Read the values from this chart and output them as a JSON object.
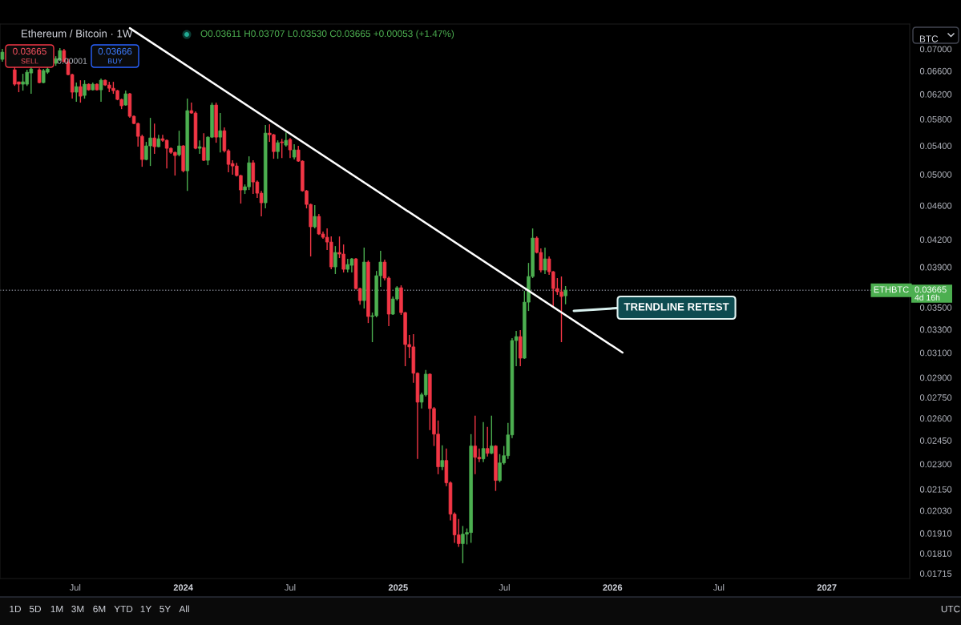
{
  "chart_data": {
    "type": "candlestick",
    "title": "Ethereum / Bitcoin · 1W",
    "subtitle": "O0.03611 H0.03707 L0.03530 C0.03665 +0.00053 (+1.47%)",
    "ylabel": "BTC",
    "log": true,
    "grid": false,
    "xlim": [
      "2023-02-23",
      "2027-05-22"
    ],
    "ylim": [
      0.01692,
      0.07484
    ],
    "xticks": [
      {
        "value": "2023-07-01",
        "label": "Jul"
      },
      {
        "value": "2024-01-01",
        "label": "2024"
      },
      {
        "value": "2024-07-01",
        "label": "Jul"
      },
      {
        "value": "2025-01-01",
        "label": "2025"
      },
      {
        "value": "2025-07-01",
        "label": "Jul"
      },
      {
        "value": "2026-01-01",
        "label": "2026"
      },
      {
        "value": "2026-07-01",
        "label": "Jul"
      },
      {
        "value": "2027-01-01",
        "label": "2027"
      }
    ],
    "yticks": [
      {
        "value": 0.07,
        "label": "0.07000"
      },
      {
        "value": 0.066,
        "label": "0.06600"
      },
      {
        "value": 0.062,
        "label": "0.06200"
      },
      {
        "value": 0.058,
        "label": "0.05800"
      },
      {
        "value": 0.054,
        "label": "0.05400"
      },
      {
        "value": 0.05,
        "label": "0.05000"
      },
      {
        "value": 0.046,
        "label": "0.04600"
      },
      {
        "value": 0.042,
        "label": "0.04200"
      },
      {
        "value": 0.039,
        "label": "0.03900"
      },
      {
        "value": 0.035,
        "label": "0.03500"
      },
      {
        "value": 0.033,
        "label": "0.03300"
      },
      {
        "value": 0.031,
        "label": "0.03100"
      },
      {
        "value": 0.029,
        "label": "0.02900"
      },
      {
        "value": 0.0275,
        "label": "0.02750"
      },
      {
        "value": 0.026,
        "label": "0.02600"
      },
      {
        "value": 0.0245,
        "label": "0.02450"
      },
      {
        "value": 0.023,
        "label": "0.02300"
      },
      {
        "value": 0.0215,
        "label": "0.02150"
      },
      {
        "value": 0.0203,
        "label": "0.02030"
      },
      {
        "value": 0.0191,
        "label": "0.01910"
      },
      {
        "value": 0.0181,
        "label": "0.01810"
      },
      {
        "value": 0.01715,
        "label": "0.01715"
      }
    ],
    "series": [
      {
        "x": [
          "2023-02-27",
          "2023-03-20",
          "2023-03-27",
          "2023-04-03",
          "2023-04-10",
          "2023-04-17",
          "2023-05-01",
          "2023-05-08",
          "2023-05-15",
          "2023-05-29",
          "2023-06-05",
          "2023-06-12",
          "2023-06-19",
          "2023-06-26",
          "2023-07-03",
          "2023-07-10",
          "2023-07-17",
          "2023-07-24",
          "2023-07-31",
          "2023-08-07",
          "2023-08-14",
          "2023-08-21",
          "2023-08-28",
          "2023-09-04",
          "2023-09-11",
          "2023-09-18",
          "2023-09-25",
          "2023-10-02",
          "2023-10-09",
          "2023-10-16",
          "2023-10-23",
          "2023-10-30",
          "2023-11-06",
          "2023-11-13",
          "2023-11-20",
          "2023-11-27",
          "2023-12-04",
          "2023-12-11",
          "2023-12-18",
          "2023-12-25",
          "2024-01-01",
          "2024-01-08",
          "2024-01-15",
          "2024-01-22",
          "2024-01-29",
          "2024-02-05",
          "2024-02-12",
          "2024-02-19",
          "2024-02-26",
          "2024-03-04",
          "2024-03-11",
          "2024-03-18",
          "2024-03-25",
          "2024-04-01",
          "2024-04-08",
          "2024-04-15",
          "2024-04-22",
          "2024-04-29",
          "2024-05-06",
          "2024-05-13",
          "2024-05-20",
          "2024-05-27",
          "2024-06-03",
          "2024-06-10",
          "2024-06-17",
          "2024-06-24",
          "2024-07-01",
          "2024-07-08",
          "2024-07-15",
          "2024-07-22",
          "2024-07-29",
          "2024-08-05",
          "2024-08-12",
          "2024-08-19",
          "2024-08-26",
          "2024-09-02",
          "2024-09-09",
          "2024-09-16",
          "2024-09-23",
          "2024-09-30",
          "2024-10-07",
          "2024-10-14",
          "2024-10-21",
          "2024-10-28",
          "2024-11-04",
          "2024-11-11",
          "2024-11-18",
          "2024-11-25",
          "2024-12-02",
          "2024-12-09",
          "2024-12-16",
          "2024-12-23",
          "2024-12-30",
          "2025-01-06",
          "2025-01-13",
          "2025-01-20",
          "2025-01-27",
          "2025-02-03",
          "2025-02-10",
          "2025-02-17",
          "2025-02-24",
          "2025-03-03",
          "2025-03-10",
          "2025-03-17",
          "2025-03-24",
          "2025-03-31",
          "2025-04-07",
          "2025-04-14",
          "2025-04-21",
          "2025-04-28",
          "2025-05-05",
          "2025-05-12",
          "2025-05-19",
          "2025-05-26",
          "2025-06-02",
          "2025-06-09",
          "2025-06-16",
          "2025-06-23",
          "2025-06-30",
          "2025-07-07",
          "2025-07-14",
          "2025-07-21",
          "2025-07-28",
          "2025-08-04",
          "2025-08-11",
          "2025-08-18",
          "2025-08-25",
          "2025-09-01",
          "2025-09-08",
          "2025-09-15",
          "2025-09-22",
          "2025-09-29",
          "2025-10-06",
          "2025-10-13"
        ],
        "ohlc": [
          [
            0.06808,
            0.07,
            0.06764,
            0.0694
          ],
          [
            0.0662,
            0.06677,
            0.06341,
            0.06369
          ],
          [
            0.0641,
            0.0641,
            0.06234,
            0.06369
          ],
          [
            0.06369,
            0.06549,
            0.0626,
            0.0641
          ],
          [
            0.06369,
            0.0662,
            0.06341,
            0.06577
          ],
          [
            0.06563,
            0.06677,
            0.06207,
            0.06634
          ],
          [
            0.0662,
            0.06648,
            0.06383,
            0.06396
          ],
          [
            0.06396,
            0.06634,
            0.06383,
            0.06606
          ],
          [
            0.06577,
            0.06677,
            0.06549,
            0.06634
          ],
          [
            0.06735,
            0.06866,
            0.06691,
            0.06822
          ],
          [
            0.06793,
            0.07015,
            0.06778,
            0.0697
          ],
          [
            0.0697,
            0.07,
            0.06749,
            0.06764
          ],
          [
            0.06764,
            0.06822,
            0.06521,
            0.06535
          ],
          [
            0.06535,
            0.06549,
            0.06127,
            0.06234
          ],
          [
            0.06234,
            0.06396,
            0.06075,
            0.06328
          ],
          [
            0.06328,
            0.06437,
            0.06062,
            0.06167
          ],
          [
            0.0618,
            0.06437,
            0.06127,
            0.06369
          ],
          [
            0.06369,
            0.06383,
            0.0626,
            0.06273
          ],
          [
            0.06273,
            0.06396,
            0.0626,
            0.06369
          ],
          [
            0.06369,
            0.06383,
            0.0626,
            0.06273
          ],
          [
            0.06273,
            0.06465,
            0.06075,
            0.06437
          ],
          [
            0.06437,
            0.06451,
            0.06341,
            0.06355
          ],
          [
            0.06355,
            0.0641,
            0.06234,
            0.063
          ],
          [
            0.063,
            0.0641,
            0.06207,
            0.0626
          ],
          [
            0.0626,
            0.06273,
            0.06101,
            0.06114
          ],
          [
            0.06114,
            0.06127,
            0.05958,
            0.0601
          ],
          [
            0.06023,
            0.0626,
            0.0601,
            0.06207
          ],
          [
            0.06207,
            0.06221,
            0.05819,
            0.05844
          ],
          [
            0.05844,
            0.05857,
            0.0572,
            0.05732
          ],
          [
            0.05732,
            0.05745,
            0.05386,
            0.05538
          ],
          [
            0.05538,
            0.05562,
            0.05104,
            0.05204
          ],
          [
            0.05204,
            0.05456,
            0.05193,
            0.05398
          ],
          [
            0.05398,
            0.05819,
            0.05115,
            0.05514
          ],
          [
            0.05514,
            0.05732,
            0.05283,
            0.05386
          ],
          [
            0.05386,
            0.05562,
            0.05375,
            0.05502
          ],
          [
            0.05502,
            0.05562,
            0.05456,
            0.05479
          ],
          [
            0.05479,
            0.05491,
            0.05082,
            0.05363
          ],
          [
            0.05363,
            0.05375,
            0.05283,
            0.05305
          ],
          [
            0.05305,
            0.05316,
            0.04985,
            0.0526
          ],
          [
            0.05271,
            0.05622,
            0.05249,
            0.05398
          ],
          [
            0.05398,
            0.05409,
            0.05028,
            0.05049
          ],
          [
            0.05049,
            0.06127,
            0.04785,
            0.05933
          ],
          [
            0.05933,
            0.06062,
            0.05883,
            0.05895
          ],
          [
            0.05895,
            0.05921,
            0.05351,
            0.05363
          ],
          [
            0.05363,
            0.05479,
            0.05283,
            0.05386
          ],
          [
            0.05375,
            0.05586,
            0.05182,
            0.05193
          ],
          [
            0.05193,
            0.05538,
            0.05126,
            0.05526
          ],
          [
            0.05526,
            0.06062,
            0.05514,
            0.06023
          ],
          [
            0.06023,
            0.06062,
            0.05444,
            0.05526
          ],
          [
            0.05526,
            0.05895,
            0.05305,
            0.05622
          ],
          [
            0.05622,
            0.05671,
            0.05305,
            0.05328
          ],
          [
            0.05328,
            0.05351,
            0.05028,
            0.05137
          ],
          [
            0.05148,
            0.05193,
            0.04996,
            0.05115
          ],
          [
            0.05115,
            0.05159,
            0.04974,
            0.04985
          ],
          [
            0.04985,
            0.04996,
            0.04624,
            0.04796
          ],
          [
            0.04796,
            0.04868,
            0.04745,
            0.04837
          ],
          [
            0.04837,
            0.05249,
            0.04796,
            0.05159
          ],
          [
            0.05159,
            0.05193,
            0.04745,
            0.049
          ],
          [
            0.049,
            0.04921,
            0.04694,
            0.04755
          ],
          [
            0.04755,
            0.04785,
            0.04468,
            0.04634
          ],
          [
            0.04634,
            0.05708,
            0.04565,
            0.05586
          ],
          [
            0.05586,
            0.0572,
            0.05456,
            0.05562
          ],
          [
            0.05562,
            0.05574,
            0.05215,
            0.05316
          ],
          [
            0.05316,
            0.05479,
            0.05215,
            0.05444
          ],
          [
            0.05456,
            0.05502,
            0.05226,
            0.05444
          ],
          [
            0.05409,
            0.05598,
            0.05386,
            0.05479
          ],
          [
            0.05491,
            0.05514,
            0.05226,
            0.0534
          ],
          [
            0.05238,
            0.05421,
            0.05204,
            0.0534
          ],
          [
            0.0534,
            0.05398,
            0.05171,
            0.05182
          ],
          [
            0.05182,
            0.05193,
            0.04775,
            0.04785
          ],
          [
            0.04785,
            0.04796,
            0.04565,
            0.04614
          ],
          [
            0.04614,
            0.04624,
            0.04013,
            0.04345
          ],
          [
            0.04345,
            0.04604,
            0.04326,
            0.04468
          ],
          [
            0.04468,
            0.04497,
            0.04252,
            0.04262
          ],
          [
            0.04262,
            0.04289,
            0.04207,
            0.04225
          ],
          [
            0.04225,
            0.04326,
            0.04082,
            0.04171
          ],
          [
            0.04171,
            0.04234,
            0.03877,
            0.03902
          ],
          [
            0.03902,
            0.04126,
            0.03828,
            0.04056
          ],
          [
            0.04056,
            0.04234,
            0.03996,
            0.04039
          ],
          [
            0.04039,
            0.04144,
            0.03844,
            0.03877
          ],
          [
            0.03877,
            0.03987,
            0.03844,
            0.03927
          ],
          [
            0.03919,
            0.03996,
            0.03844,
            0.03987
          ],
          [
            0.03987,
            0.03996,
            0.03674,
            0.03682
          ],
          [
            0.03682,
            0.0369,
            0.03527,
            0.03565
          ],
          [
            0.03565,
            0.04109,
            0.0349,
            0.03953
          ],
          [
            0.03953,
            0.0397,
            0.03357,
            0.03416
          ],
          [
            0.03416,
            0.03452,
            0.03189,
            0.03423
          ],
          [
            0.03423,
            0.0386,
            0.03409,
            0.03811
          ],
          [
            0.03811,
            0.04074,
            0.03698,
            0.03953
          ],
          [
            0.03953,
            0.03979,
            0.03762,
            0.03787
          ],
          [
            0.03787,
            0.03803,
            0.03329,
            0.03438
          ],
          [
            0.03438,
            0.03604,
            0.03431,
            0.03581
          ],
          [
            0.03581,
            0.03706,
            0.03565,
            0.0369
          ],
          [
            0.0369,
            0.03714,
            0.03431,
            0.03452
          ],
          [
            0.03452,
            0.03459,
            0.0299,
            0.03169
          ],
          [
            0.03169,
            0.03251,
            0.03055,
            0.03149
          ],
          [
            0.03149,
            0.03258,
            0.02859,
            0.02934
          ],
          [
            0.02934,
            0.0294,
            0.02332,
            0.02715
          ],
          [
            0.02715,
            0.02786,
            0.02669,
            0.02769
          ],
          [
            0.02769,
            0.02959,
            0.02757,
            0.02927
          ],
          [
            0.02927,
            0.02933,
            0.02519,
            0.02669
          ],
          [
            0.02669,
            0.0268,
            0.02414,
            0.02492
          ],
          [
            0.02492,
            0.02585,
            0.02238,
            0.02283
          ],
          [
            0.02283,
            0.02419,
            0.02263,
            0.02322
          ],
          [
            0.02322,
            0.02398,
            0.02168,
            0.02187
          ],
          [
            0.02187,
            0.02196,
            0.01977,
            0.02011
          ],
          [
            0.02011,
            0.0202,
            0.01862,
            0.01902
          ],
          [
            0.01902,
            0.01985,
            0.01842,
            0.01858
          ],
          [
            0.01858,
            0.01948,
            0.01763,
            0.01906
          ],
          [
            0.01906,
            0.01935,
            0.01854,
            0.01914
          ],
          [
            0.01914,
            0.02492,
            0.01862,
            0.02414
          ],
          [
            0.02414,
            0.02619,
            0.02238,
            0.02342
          ],
          [
            0.02342,
            0.02398,
            0.02312,
            0.02332
          ],
          [
            0.02332,
            0.02574,
            0.02312,
            0.02398
          ],
          [
            0.02398,
            0.02541,
            0.02347,
            0.02367
          ],
          [
            0.02367,
            0.02619,
            0.02362,
            0.02414
          ],
          [
            0.02414,
            0.02419,
            0.0214,
            0.02201
          ],
          [
            0.02201,
            0.02362,
            0.02191,
            0.02307
          ],
          [
            0.02307,
            0.02414,
            0.02297,
            0.02352
          ],
          [
            0.02352,
            0.02568,
            0.02332,
            0.02487
          ],
          [
            0.02487,
            0.03223,
            0.02466,
            0.03203
          ],
          [
            0.03203,
            0.03286,
            0.0299,
            0.03237
          ],
          [
            0.03237,
            0.03294,
            0.0299,
            0.03055
          ],
          [
            0.03055,
            0.03659,
            0.03049,
            0.0355
          ],
          [
            0.0355,
            0.03944,
            0.03467,
            0.03803
          ],
          [
            0.03803,
            0.04326,
            0.03787,
            0.04216
          ],
          [
            0.04216,
            0.04234,
            0.04047,
            0.04056
          ],
          [
            0.04056,
            0.041,
            0.03844,
            0.03869
          ],
          [
            0.03869,
            0.04109,
            0.03828,
            0.03987
          ],
          [
            0.03987,
            0.04013,
            0.03819,
            0.03852
          ],
          [
            0.03852,
            0.0386,
            0.03512,
            0.03682
          ],
          [
            0.03682,
            0.03787,
            0.0362,
            0.03651
          ],
          [
            0.03651,
            0.03803,
            0.03189,
            0.03604
          ],
          [
            0.03611,
            0.03707,
            0.0353,
            0.03665
          ]
        ],
        "colors": [
          "#4caf50",
          "#f23645",
          "#f23645",
          "#4caf50",
          "#4caf50",
          "#4caf50",
          "#f23645",
          "#4caf50",
          "#4caf50",
          "#4caf50",
          "#4caf50",
          "#f23645",
          "#f23645",
          "#f23645",
          "#4caf50",
          "#f23645",
          "#4caf50",
          "#f23645",
          "#4caf50",
          "#f23645",
          "#4caf50",
          "#f23645",
          "#f23645",
          "#f23645",
          "#f23645",
          "#f23645",
          "#4caf50",
          "#f23645",
          "#f23645",
          "#f23645",
          "#f23645",
          "#4caf50",
          "#4caf50",
          "#f23645",
          "#4caf50",
          "#f23645",
          "#f23645",
          "#f23645",
          "#f23645",
          "#4caf50",
          "#f23645",
          "#4caf50",
          "#f23645",
          "#f23645",
          "#4caf50",
          "#f23645",
          "#4caf50",
          "#4caf50",
          "#f23645",
          "#4caf50",
          "#f23645",
          "#f23645",
          "#f23645",
          "#f23645",
          "#f23645",
          "#4caf50",
          "#4caf50",
          "#f23645",
          "#f23645",
          "#f23645",
          "#4caf50",
          "#f23645",
          "#f23645",
          "#4caf50",
          "#f23645",
          "#4caf50",
          "#f23645",
          "#4caf50",
          "#f23645",
          "#f23645",
          "#f23645",
          "#f23645",
          "#4caf50",
          "#f23645",
          "#f23645",
          "#f23645",
          "#f23645",
          "#4caf50",
          "#f23645",
          "#f23645",
          "#4caf50",
          "#4caf50",
          "#f23645",
          "#f23645",
          "#4caf50",
          "#f23645",
          "#4caf50",
          "#4caf50",
          "#4caf50",
          "#f23645",
          "#f23645",
          "#4caf50",
          "#4caf50",
          "#f23645",
          "#f23645",
          "#f23645",
          "#f23645",
          "#f23645",
          "#4caf50",
          "#4caf50",
          "#f23645",
          "#f23645",
          "#f23645",
          "#4caf50",
          "#f23645",
          "#f23645",
          "#f23645",
          "#f23645",
          "#4caf50",
          "#4caf50",
          "#4caf50",
          "#f23645",
          "#f23645",
          "#4caf50",
          "#f23645",
          "#4caf50",
          "#f23645",
          "#4caf50",
          "#4caf50",
          "#4caf50",
          "#4caf50",
          "#4caf50",
          "#f23645",
          "#4caf50",
          "#4caf50",
          "#4caf50",
          "#f23645",
          "#f23645",
          "#4caf50",
          "#f23645",
          "#f23645",
          "#f23645",
          "#f23645",
          "#4caf50"
        ]
      },
      {
        "type": "line",
        "x": [
          "2023-10-02",
          "2026-01-18"
        ],
        "values": [
          0.07402,
          0.03101
        ],
        "color": "#ffffff"
      }
    ],
    "ref_lines": [
      {
        "axis": "y",
        "value": 0.03665,
        "label": "ETHBTC",
        "color": "#787b86",
        "line_style": "dotted"
      }
    ],
    "annotations": [
      "0.03665",
      "SELL",
      "0.00001",
      "0.03666",
      "BUY",
      "0.03665",
      "4d 16h",
      "TRENDLINE RETEST",
      "1D",
      "5D",
      "1M",
      "3M",
      "6M",
      "YTD",
      "1Y",
      "5Y",
      "All",
      "UTC"
    ]
  }
}
